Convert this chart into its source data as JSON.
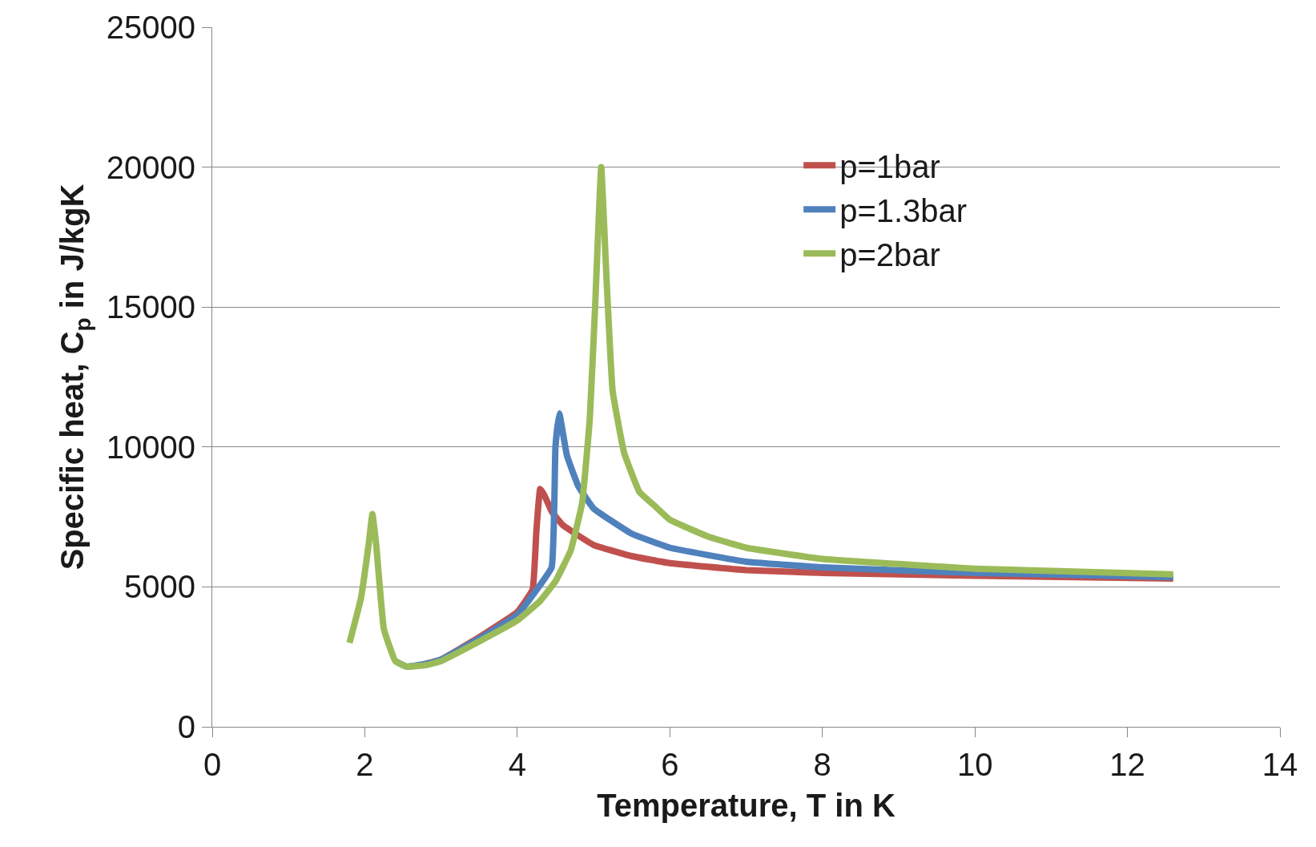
{
  "chart_data": {
    "type": "line",
    "xlabel": "Temperature, T in K",
    "ylabel": "Specific heat, C$_{p}$ in J/kgK",
    "xlim": [
      0,
      14
    ],
    "xticks": [
      0,
      2,
      4,
      6,
      8,
      10,
      12,
      14
    ],
    "ylim": [
      0,
      25000
    ],
    "yticks": [
      0,
      5000,
      10000,
      15000,
      20000,
      25000
    ],
    "grid": "y",
    "legend": "top right",
    "marker": "none",
    "line_style": "solid",
    "series": [
      {
        "name": "p=1bar",
        "color": "#c0504d",
        "x": [
          2.8,
          3.0,
          3.5,
          4.0,
          4.2,
          4.25,
          4.3,
          4.35,
          4.45,
          4.6,
          5.0,
          5.5,
          6,
          7,
          8,
          10,
          12.6
        ],
        "values": [
          2250,
          2400,
          3200,
          4100,
          4900,
          7000,
          8500,
          8300,
          7700,
          7200,
          6500,
          6100,
          5850,
          5600,
          5500,
          5400,
          5300
        ]
      },
      {
        "name": "p=1.3bar",
        "color": "#4f81bd",
        "x": [
          2.4,
          2.55,
          2.8,
          3.0,
          3.5,
          4.0,
          4.2,
          4.45,
          4.5,
          4.55,
          4.65,
          4.8,
          5.0,
          5.5,
          6,
          7,
          8,
          10,
          12.6
        ],
        "values": [
          2350,
          2150,
          2250,
          2400,
          3150,
          4000,
          4700,
          5700,
          10000,
          11200,
          9700,
          8600,
          7800,
          6900,
          6400,
          5900,
          5700,
          5500,
          5350
        ]
      },
      {
        "name": "p=2bar",
        "color": "#9bbb59",
        "x": [
          1.8,
          1.95,
          2.05,
          2.1,
          2.15,
          2.25,
          2.4,
          2.55,
          2.8,
          3.0,
          3.5,
          4.0,
          4.3,
          4.5,
          4.7,
          4.85,
          4.95,
          5.02,
          5.1,
          5.17,
          5.25,
          5.4,
          5.6,
          5.8,
          6,
          6.5,
          7,
          8,
          10,
          12.6
        ],
        "values": [
          3000,
          4600,
          6500,
          7600,
          6500,
          3500,
          2350,
          2150,
          2200,
          2350,
          3050,
          3800,
          4500,
          5200,
          6300,
          8000,
          11000,
          15000,
          20000,
          16000,
          12000,
          9800,
          8400,
          7900,
          7400,
          6800,
          6400,
          6000,
          5650,
          5450
        ]
      }
    ]
  }
}
